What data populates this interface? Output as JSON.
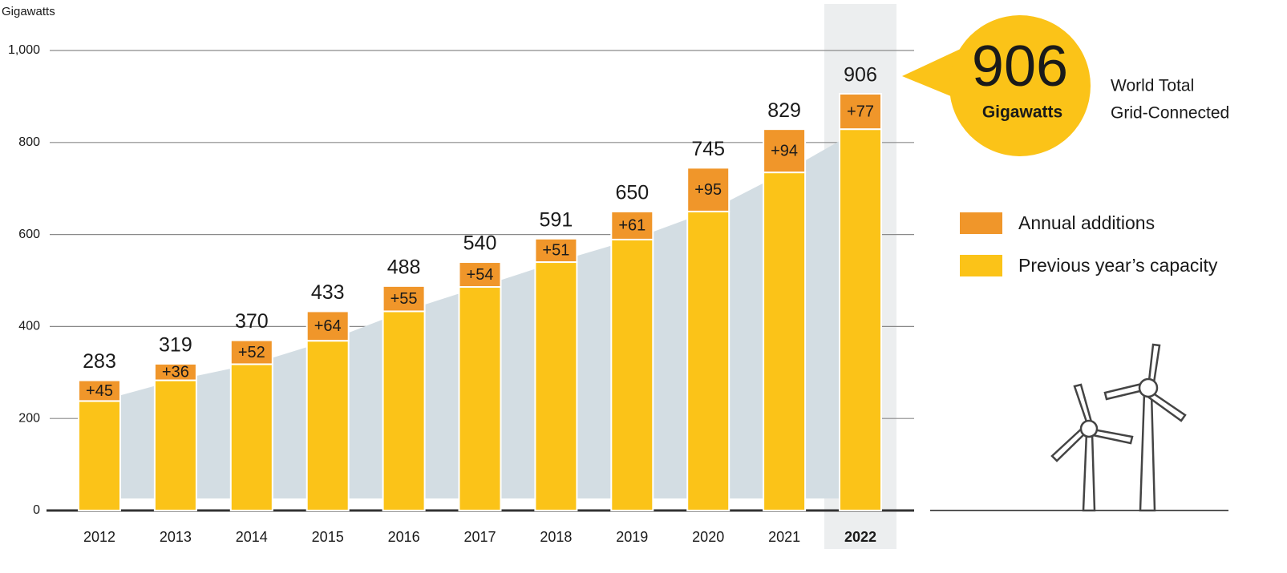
{
  "chart_data": {
    "type": "bar",
    "stacked": true,
    "y_label": "Gigawatts",
    "categories": [
      "2012",
      "2013",
      "2014",
      "2015",
      "2016",
      "2017",
      "2018",
      "2019",
      "2020",
      "2021",
      "2022"
    ],
    "series": [
      {
        "name": "Previous year’s capacity",
        "color": "#fbc318",
        "values": [
          238,
          283,
          318,
          369,
          433,
          486,
          540,
          589,
          650,
          735,
          829
        ]
      },
      {
        "name": "Annual additions",
        "color": "#f0962a",
        "values": [
          45,
          36,
          52,
          64,
          55,
          54,
          51,
          61,
          95,
          94,
          77
        ],
        "value_labels": [
          "+45",
          "+36",
          "+52",
          "+64",
          "+55",
          "+54",
          "+51",
          "+61",
          "+95",
          "+94",
          "+77"
        ]
      }
    ],
    "totals": [
      283,
      319,
      370,
      433,
      488,
      540,
      591,
      650,
      745,
      829,
      906
    ],
    "ylim": [
      0,
      1000
    ],
    "yticks": [
      0,
      200,
      400,
      600,
      800,
      {
        "value": 1000,
        "label": "1,000"
      }
    ],
    "grid": true,
    "highlight": "2022",
    "callout": {
      "unit": "Gigawatts",
      "label": [
        "World Total",
        "Grid-Connected"
      ]
    }
  }
}
